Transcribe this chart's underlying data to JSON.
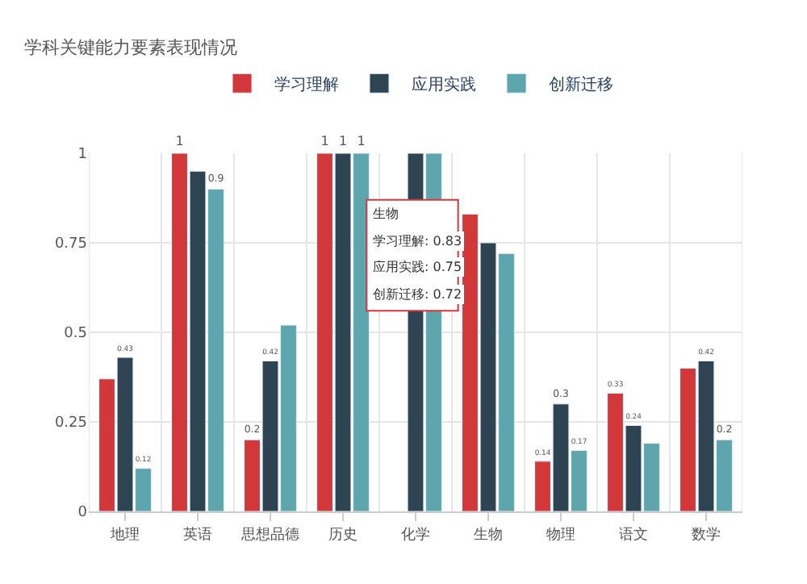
{
  "chart_data": {
    "type": "bar",
    "title": "学科关键能力要素表现情况",
    "categories": [
      "地理",
      "英语",
      "思想品德",
      "历史",
      "化学",
      "生物",
      "物理",
      "语文",
      "数学"
    ],
    "series": [
      {
        "name": "学习理解",
        "color": "#d2383a",
        "values": [
          0.37,
          1,
          0.2,
          1,
          null,
          0.83,
          0.14,
          0.33,
          0.4
        ],
        "value_labels": [
          null,
          "1",
          "0.2",
          "1",
          null,
          null,
          "0.14",
          "0.33",
          null
        ]
      },
      {
        "name": "应用实践",
        "color": "#2e4453",
        "values": [
          0.43,
          0.95,
          0.42,
          1,
          1,
          0.75,
          0.3,
          0.24,
          0.42
        ],
        "value_labels": [
          "0.43",
          null,
          "0.42",
          "1",
          null,
          null,
          "0.3",
          "0.24",
          "0.42"
        ]
      },
      {
        "name": "创新迁移",
        "color": "#5fa5ad",
        "values": [
          0.12,
          0.9,
          0.52,
          1,
          1,
          0.72,
          0.17,
          0.19,
          0.2
        ],
        "value_labels": [
          "0.12",
          "0.9",
          null,
          "1",
          null,
          null,
          "0.17",
          null,
          "0.2"
        ]
      }
    ],
    "annotations": [
      "生物",
      "学习理解: 0.83",
      "应用实践: 0.75",
      "创新迁移: 0.72"
    ],
    "ylim": [
      0,
      1
    ],
    "yticks": [
      0,
      0.25,
      0.5,
      0.75,
      1
    ],
    "grid": true,
    "legend": "top"
  }
}
